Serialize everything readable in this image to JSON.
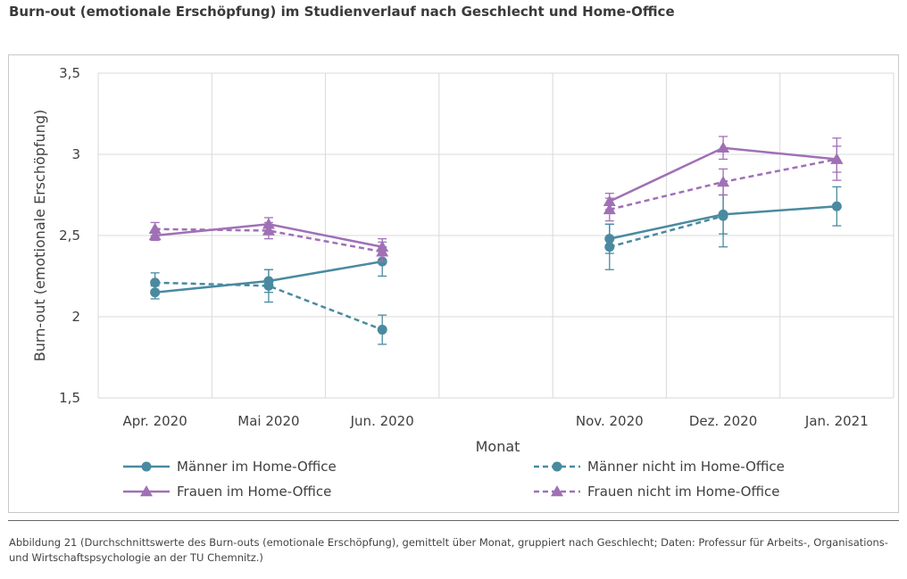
{
  "title": "Burn-out (emotionale Erschöpfung) im Studienverlauf nach Geschlecht und Home-Office",
  "caption": "Abbildung 21 (Durchschnittswerte des Burn-outs (emotionale Erschöpfung), gemittelt über Monat, gruppiert nach Geschlecht; Daten: Professur für Arbeits-, Organisations- und Wirtschaftspsychologie an der TU Chemnitz.)",
  "colors": {
    "teal": "#4a8aa0",
    "purple": "#a070b6",
    "grid": "#d9d9d9",
    "text": "#404040"
  },
  "chart_data": {
    "type": "line",
    "title": "",
    "xlabel": "Monat",
    "ylabel": "Burn-out (emotionale Erschöpfung)",
    "ylim": [
      1.5,
      3.5
    ],
    "yticks": [
      1.5,
      2,
      2.5,
      3,
      3.5
    ],
    "ytick_labels": [
      "1,5",
      "2",
      "2,5",
      "3",
      "3,5"
    ],
    "categories": [
      "Apr. 2020",
      "Mai 2020",
      "Jun. 2020",
      "",
      "Nov. 2020",
      "Dez. 2020",
      "Jan. 2021"
    ],
    "series": [
      {
        "name": "Männer im Home-Office",
        "color": "#4a8aa0",
        "dashed": false,
        "marker": "circle",
        "values": [
          2.15,
          2.22,
          2.34,
          null,
          2.48,
          2.63,
          2.68
        ],
        "errors": [
          0.04,
          0.07,
          0.09,
          null,
          0.09,
          0.12,
          0.12
        ]
      },
      {
        "name": "Männer nicht im Home-Office",
        "color": "#4a8aa0",
        "dashed": true,
        "marker": "circle",
        "values": [
          2.21,
          2.19,
          1.92,
          null,
          2.43,
          2.62,
          null
        ],
        "errors": [
          0.06,
          0.1,
          0.09,
          null,
          0.14,
          0.19,
          null
        ]
      },
      {
        "name": "Frauen im Home-Office",
        "color": "#a070b6",
        "dashed": false,
        "marker": "triangle",
        "values": [
          2.5,
          2.57,
          2.43,
          null,
          2.71,
          3.04,
          2.97
        ],
        "errors": [
          0.03,
          0.04,
          0.05,
          null,
          0.05,
          0.07,
          0.08
        ]
      },
      {
        "name": "Frauen nicht im Home-Office",
        "color": "#a070b6",
        "dashed": true,
        "marker": "triangle",
        "values": [
          2.54,
          2.53,
          2.4,
          null,
          2.66,
          2.83,
          2.97
        ],
        "errors": [
          0.04,
          0.05,
          0.06,
          null,
          0.07,
          0.08,
          0.13
        ]
      }
    ],
    "legend": "bottom",
    "grid": true
  }
}
